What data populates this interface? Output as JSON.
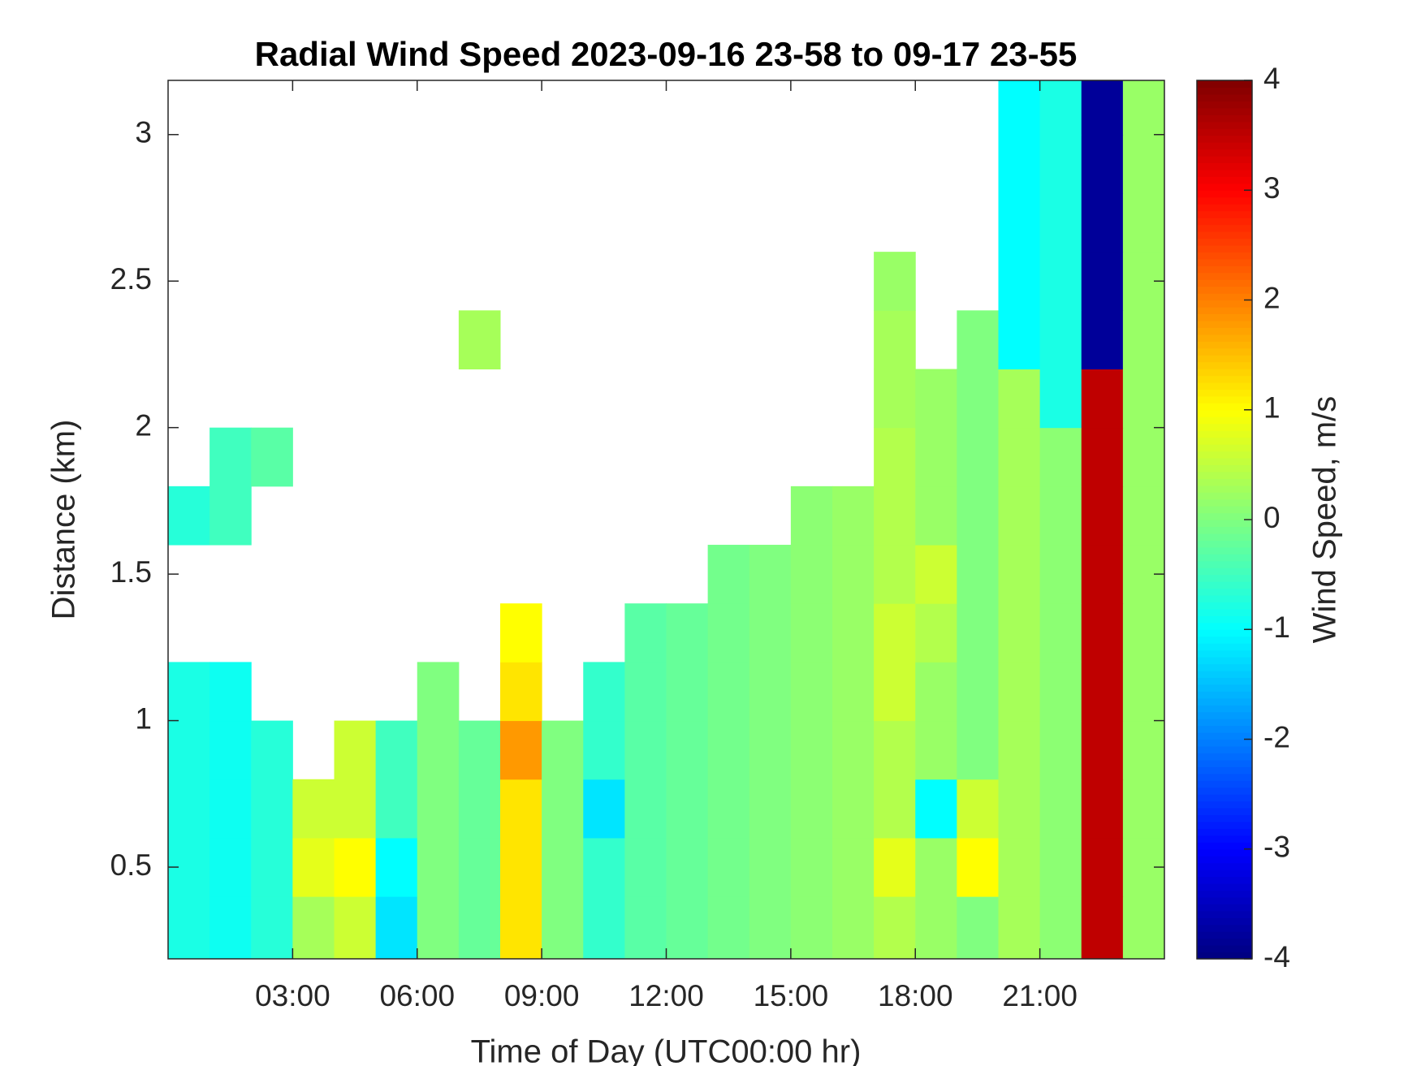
{
  "chart_data": {
    "type": "heatmap",
    "title": "Radial Wind Speed 2023-09-16 23-58 to 09-17 23-55",
    "x_label": "Time of Day (UTC00:00 hr)",
    "y_label": "Distance (km)",
    "colorbar_label": "Wind Speed, m/s",
    "colormap": "jet",
    "xlim": [
      0,
      24
    ],
    "xticks": [
      {
        "value": 3,
        "label": "03:00"
      },
      {
        "value": 6,
        "label": "06:00"
      },
      {
        "value": 9,
        "label": "09:00"
      },
      {
        "value": 12,
        "label": "12:00"
      },
      {
        "value": 15,
        "label": "15:00"
      },
      {
        "value": 18,
        "label": "18:00"
      },
      {
        "value": 21,
        "label": "21:00"
      }
    ],
    "ylim": [
      0.187,
      3.185
    ],
    "yticks": [
      0.5,
      1,
      1.5,
      2,
      2.5,
      3
    ],
    "clim": [
      -4,
      4
    ],
    "cticks": [
      -4,
      -3,
      -2,
      -1,
      0,
      1,
      2,
      3,
      4
    ],
    "x_bins": [
      0,
      1,
      2,
      3,
      4,
      5,
      6,
      7,
      8,
      9,
      10,
      11,
      12,
      13,
      14,
      15,
      16,
      17,
      18,
      19,
      20,
      21,
      22,
      23,
      24
    ],
    "y_bins": [
      0.187,
      0.4,
      0.6,
      0.8,
      1.0,
      1.2,
      1.4,
      1.6,
      1.8,
      2.0,
      2.2,
      2.4,
      2.6,
      2.8,
      3.0,
      3.185
    ],
    "z": [
      [
        -0.8,
        -0.9,
        -0.7,
        0.3,
        0.6,
        -1.2,
        0.0,
        -0.2,
        1.2,
        0.0,
        -0.6,
        -0.3,
        -0.2,
        -0.1,
        0.0,
        0.1,
        0.2,
        0.4,
        0.2,
        0.0,
        0.3,
        0.1,
        3.5,
        0.2
      ],
      [
        -0.8,
        -0.9,
        -0.7,
        0.8,
        1.0,
        -1.0,
        0.0,
        -0.2,
        1.2,
        0.0,
        -0.6,
        -0.3,
        -0.2,
        -0.1,
        0.0,
        0.1,
        0.2,
        0.8,
        0.2,
        1.0,
        0.3,
        0.1,
        3.5,
        0.2
      ],
      [
        -0.8,
        -0.9,
        -0.7,
        0.6,
        0.6,
        -0.5,
        0.0,
        -0.2,
        1.2,
        0.0,
        -1.2,
        -0.3,
        -0.2,
        -0.1,
        0.0,
        0.1,
        0.2,
        0.4,
        -1.0,
        0.6,
        0.3,
        0.1,
        3.5,
        0.2
      ],
      [
        -0.8,
        -0.9,
        -0.7,
        null,
        0.6,
        -0.5,
        0.0,
        -0.2,
        1.8,
        0.0,
        -0.6,
        -0.3,
        -0.2,
        -0.1,
        0.0,
        0.1,
        0.2,
        0.4,
        0.2,
        0.0,
        0.3,
        0.1,
        3.5,
        0.2
      ],
      [
        -0.8,
        -0.9,
        null,
        null,
        null,
        null,
        0.0,
        null,
        1.2,
        null,
        -0.6,
        -0.3,
        -0.2,
        -0.1,
        0.0,
        0.1,
        0.2,
        0.6,
        0.2,
        0.0,
        0.3,
        0.1,
        3.5,
        0.2
      ],
      [
        null,
        null,
        null,
        null,
        null,
        null,
        null,
        null,
        1.0,
        null,
        null,
        -0.3,
        -0.2,
        -0.1,
        0.0,
        0.1,
        0.2,
        0.6,
        0.4,
        0.0,
        0.3,
        0.1,
        3.5,
        0.2
      ],
      [
        null,
        null,
        null,
        null,
        null,
        null,
        null,
        null,
        null,
        null,
        null,
        null,
        null,
        -0.1,
        0.0,
        0.1,
        0.2,
        0.4,
        0.6,
        0.0,
        0.3,
        0.1,
        3.5,
        0.2
      ],
      [
        -0.7,
        -0.5,
        null,
        null,
        null,
        null,
        null,
        null,
        null,
        null,
        null,
        null,
        null,
        null,
        null,
        0.1,
        0.2,
        0.4,
        0.2,
        0.0,
        0.3,
        0.1,
        3.5,
        0.2
      ],
      [
        null,
        -0.5,
        -0.3,
        null,
        null,
        null,
        null,
        null,
        null,
        null,
        null,
        null,
        null,
        null,
        null,
        null,
        null,
        0.4,
        0.2,
        0.0,
        0.3,
        0.1,
        3.5,
        0.2
      ],
      [
        null,
        null,
        null,
        null,
        null,
        null,
        null,
        null,
        null,
        null,
        null,
        null,
        null,
        null,
        null,
        null,
        null,
        0.3,
        0.2,
        0.0,
        0.3,
        -0.8,
        3.5,
        0.2
      ],
      [
        null,
        null,
        null,
        null,
        null,
        null,
        null,
        0.3,
        null,
        null,
        null,
        null,
        null,
        null,
        null,
        null,
        null,
        0.3,
        null,
        0.0,
        -1.0,
        -0.8,
        -3.8,
        0.2
      ],
      [
        null,
        null,
        null,
        null,
        null,
        null,
        null,
        null,
        null,
        null,
        null,
        null,
        null,
        null,
        null,
        null,
        null,
        0.2,
        null,
        null,
        -1.0,
        -0.8,
        -3.8,
        0.2
      ],
      [
        null,
        null,
        null,
        null,
        null,
        null,
        null,
        null,
        null,
        null,
        null,
        null,
        null,
        null,
        null,
        null,
        null,
        null,
        null,
        null,
        -1.0,
        -0.8,
        -3.8,
        0.2
      ],
      [
        null,
        null,
        null,
        null,
        null,
        null,
        null,
        null,
        null,
        null,
        null,
        null,
        null,
        null,
        null,
        null,
        null,
        null,
        null,
        null,
        -1.0,
        -0.8,
        -3.8,
        0.2
      ],
      [
        null,
        null,
        null,
        null,
        null,
        null,
        null,
        null,
        null,
        null,
        null,
        null,
        null,
        null,
        null,
        null,
        null,
        null,
        null,
        null,
        -1.0,
        -0.8,
        -3.8,
        0.2
      ]
    ]
  }
}
